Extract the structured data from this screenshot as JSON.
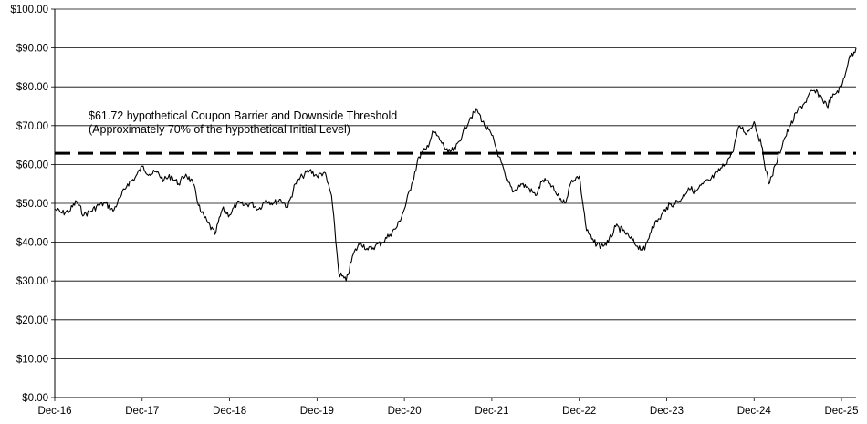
{
  "chart_data": {
    "type": "line",
    "title": "",
    "xlabel": "",
    "ylabel": "",
    "ylim": [
      0,
      100
    ],
    "xlim": [
      "2016-12",
      "2026-02"
    ],
    "grid": "horizontal",
    "y_ticks": [
      0,
      10,
      20,
      30,
      40,
      50,
      60,
      70,
      80,
      90,
      100
    ],
    "y_tick_labels": [
      "$0.00",
      "$10.00",
      "$20.00",
      "$30.00",
      "$40.00",
      "$50.00",
      "$60.00",
      "$70.00",
      "$80.00",
      "$90.00",
      "$100.00"
    ],
    "x_ticks": [
      "2016-12",
      "2017-12",
      "2018-12",
      "2019-12",
      "2020-12",
      "2021-12",
      "2022-12",
      "2023-12",
      "2024-12",
      "2025-12"
    ],
    "x_tick_labels": [
      "Dec-16",
      "Dec-17",
      "Dec-18",
      "Dec-19",
      "Dec-20",
      "Dec-21",
      "Dec-22",
      "Dec-23",
      "Dec-24",
      "Dec-25"
    ],
    "threshold": {
      "value": 61.72,
      "style": "dashed",
      "label_line1": "$61.72 hypothetical Coupon Barrier and Downside Threshold",
      "label_line2": "(Approximately 70% of the hypothetical Initial Level)"
    },
    "series": [
      {
        "x": [
          "2016-12",
          "2017-01",
          "2017-02",
          "2017-03",
          "2017-04",
          "2017-05",
          "2017-06",
          "2017-07",
          "2017-08",
          "2017-09",
          "2017-10",
          "2017-11",
          "2017-12",
          "2018-01",
          "2018-02",
          "2018-03",
          "2018-04",
          "2018-05",
          "2018-06",
          "2018-07",
          "2018-08",
          "2018-09",
          "2018-10",
          "2018-11",
          "2018-12",
          "2019-01",
          "2019-02",
          "2019-03",
          "2019-04",
          "2019-05",
          "2019-06",
          "2019-07",
          "2019-08",
          "2019-09",
          "2019-10",
          "2019-11",
          "2019-12",
          "2020-01",
          "2020-02",
          "2020-03",
          "2020-04",
          "2020-05",
          "2020-06",
          "2020-07",
          "2020-08",
          "2020-09",
          "2020-10",
          "2020-11",
          "2020-12",
          "2021-01",
          "2021-02",
          "2021-03",
          "2021-04",
          "2021-05",
          "2021-06",
          "2021-07",
          "2021-08",
          "2021-09",
          "2021-10",
          "2021-11",
          "2021-12",
          "2022-01",
          "2022-02",
          "2022-03",
          "2022-04",
          "2022-05",
          "2022-06",
          "2022-07",
          "2022-08",
          "2022-09",
          "2022-10",
          "2022-11",
          "2022-12",
          "2023-01",
          "2023-02",
          "2023-03",
          "2023-04",
          "2023-05",
          "2023-06",
          "2023-07",
          "2023-08",
          "2023-09",
          "2023-10",
          "2023-11",
          "2023-12",
          "2024-01",
          "2024-02",
          "2024-03",
          "2024-04",
          "2024-05",
          "2024-06",
          "2024-07",
          "2024-08",
          "2024-09",
          "2024-10",
          "2024-11",
          "2024-12",
          "2025-01",
          "2025-02",
          "2025-03",
          "2025-04",
          "2025-05",
          "2025-06",
          "2025-07",
          "2025-08",
          "2025-09",
          "2025-10",
          "2025-11",
          "2025-12",
          "2026-01",
          "2026-02"
        ],
        "values": [
          48.5,
          47.5,
          48.0,
          50.5,
          47.0,
          48.0,
          49.5,
          50.0,
          48.0,
          51.5,
          55.0,
          56.5,
          59.5,
          57.5,
          58.0,
          56.0,
          57.0,
          55.0,
          57.5,
          55.0,
          48.0,
          45.0,
          42.0,
          48.5,
          47.0,
          50.0,
          49.5,
          50.0,
          48.5,
          51.0,
          50.0,
          51.0,
          49.0,
          55.0,
          57.0,
          58.5,
          57.0,
          58.0,
          52.0,
          32.0,
          30.0,
          37.0,
          40.0,
          38.0,
          39.0,
          40.0,
          42.0,
          44.0,
          48.5,
          55.0,
          62.0,
          64.0,
          68.5,
          66.0,
          63.0,
          64.0,
          68.0,
          72.0,
          74.0,
          70.0,
          67.5,
          62.0,
          56.0,
          53.0,
          55.0,
          54.0,
          52.0,
          56.0,
          55.0,
          52.0,
          50.0,
          56.0,
          57.0,
          43.0,
          40.0,
          39.0,
          40.0,
          44.0,
          43.0,
          41.0,
          39.0,
          38.0,
          44.0,
          46.0,
          49.0,
          50.0,
          51.0,
          54.0,
          53.0,
          55.0,
          56.0,
          58.0,
          60.0,
          63.0,
          70.0,
          68.0,
          71.0,
          65.0,
          55.0,
          60.0,
          66.0,
          70.0,
          74.0,
          76.0,
          79.0,
          78.0,
          75.0,
          78.0,
          80.0,
          87.0,
          90.0
        ]
      }
    ]
  }
}
